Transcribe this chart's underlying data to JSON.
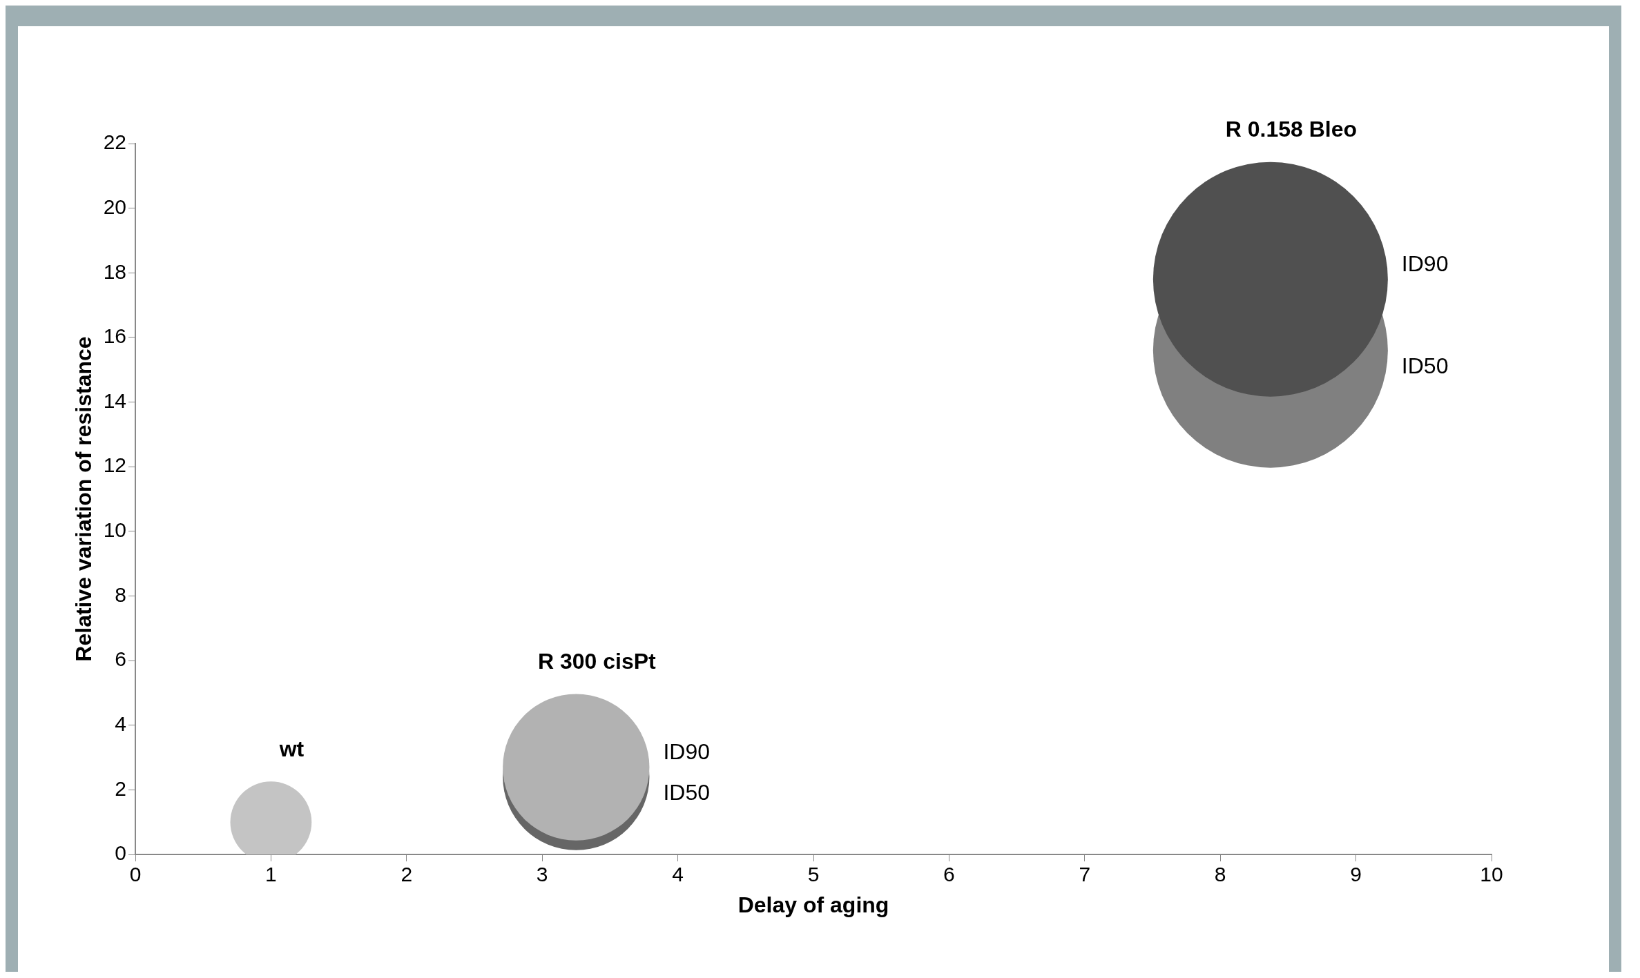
{
  "chart_data": {
    "type": "bubble",
    "xlabel": "Delay of aging",
    "ylabel": "Relative variation of resistance",
    "xlim": [
      0,
      10
    ],
    "xticks": [
      0,
      1,
      2,
      3,
      4,
      5,
      6,
      7,
      8,
      9,
      10
    ],
    "ylim": [
      0,
      22
    ],
    "yticks": [
      0,
      2,
      4,
      6,
      8,
      10,
      12,
      14,
      16,
      18,
      20,
      22
    ],
    "grid": false,
    "legend": false,
    "series": [
      {
        "name": "wt",
        "x": [
          1
        ],
        "values": [
          1
        ],
        "sizes": [
          0.12
        ],
        "colors": [
          "#c4c4c4"
        ]
      },
      {
        "name": "R 300 cisPt",
        "x": [
          3.25,
          3.25
        ],
        "values": [
          2.4,
          2.7
        ],
        "sizes": [
          0.39,
          0.39
        ],
        "colors": [
          "#666666",
          "#b2b2b2"
        ],
        "value_labels": [
          "ID50",
          "ID90"
        ]
      },
      {
        "name": "R 0.158 Bleo",
        "x": [
          8.37,
          8.37
        ],
        "values": [
          15.6,
          17.8
        ],
        "sizes": [
          1,
          1
        ],
        "colors": [
          "#808080",
          "#505050"
        ],
        "value_labels": [
          "ID50",
          "ID90"
        ]
      }
    ]
  }
}
